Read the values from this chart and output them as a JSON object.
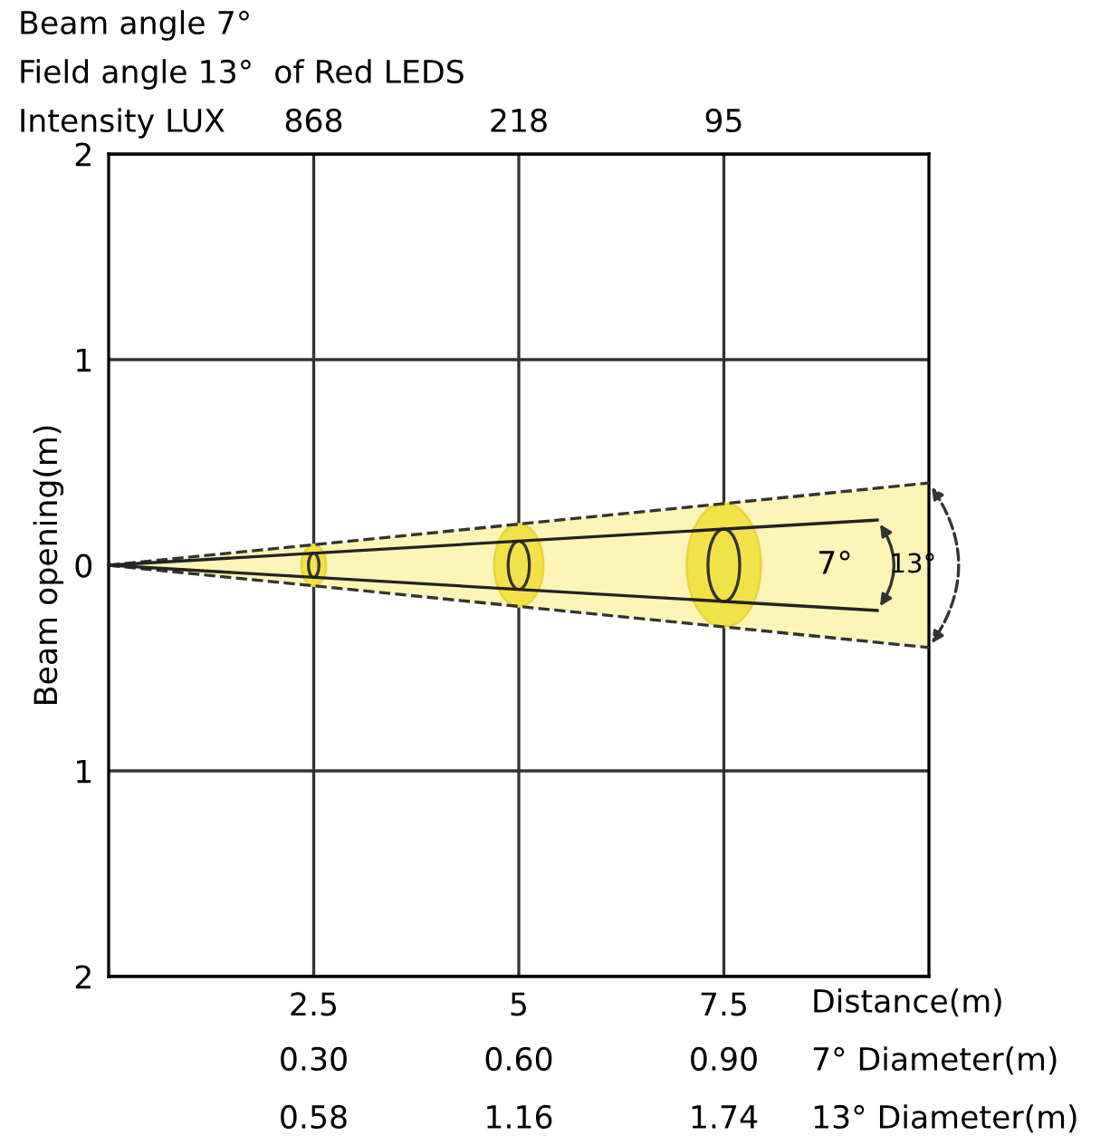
{
  "chart_data": {
    "type": "line",
    "title": "Beam angle 7°",
    "subtitle": "Field angle 13°  of Red LEDS",
    "xlabel": "Distance(m)",
    "ylabel": "Beam opening(m)",
    "series": [
      {
        "color": "#333333",
        "line_style": "dashed",
        "x": [
          0,
          10
        ],
        "values": [
          0,
          0.4
        ]
      },
      {
        "color": "#333333",
        "line_style": "dashed",
        "x": [
          0,
          10
        ],
        "values": [
          0,
          -0.4
        ]
      },
      {
        "color": "#222222",
        "line_style": "solid",
        "x": [
          0,
          9.37
        ],
        "values": [
          0,
          0.22
        ]
      },
      {
        "color": "#222222",
        "line_style": "solid",
        "x": [
          0,
          9.37
        ],
        "values": [
          0,
          -0.22
        ]
      }
    ],
    "xlim": [
      0,
      10
    ],
    "ylim": [
      -2,
      2
    ],
    "xticks": [
      2.5,
      5,
      7.5
    ],
    "yticks": [
      {
        "value": -2,
        "label": "2"
      },
      {
        "value": -1,
        "label": "1"
      },
      0,
      {
        "value": 1,
        "label": "1"
      },
      2
    ],
    "grid": true,
    "legend": false,
    "marker": "none",
    "annotations": [
      "Intensity LUX",
      "868",
      "218",
      "95",
      "7° Diameter(m)",
      "0.30",
      "0.60",
      "0.90",
      "13° Diameter(m)",
      "0.58",
      "1.16",
      "1.74",
      "7°",
      "13°"
    ]
  }
}
